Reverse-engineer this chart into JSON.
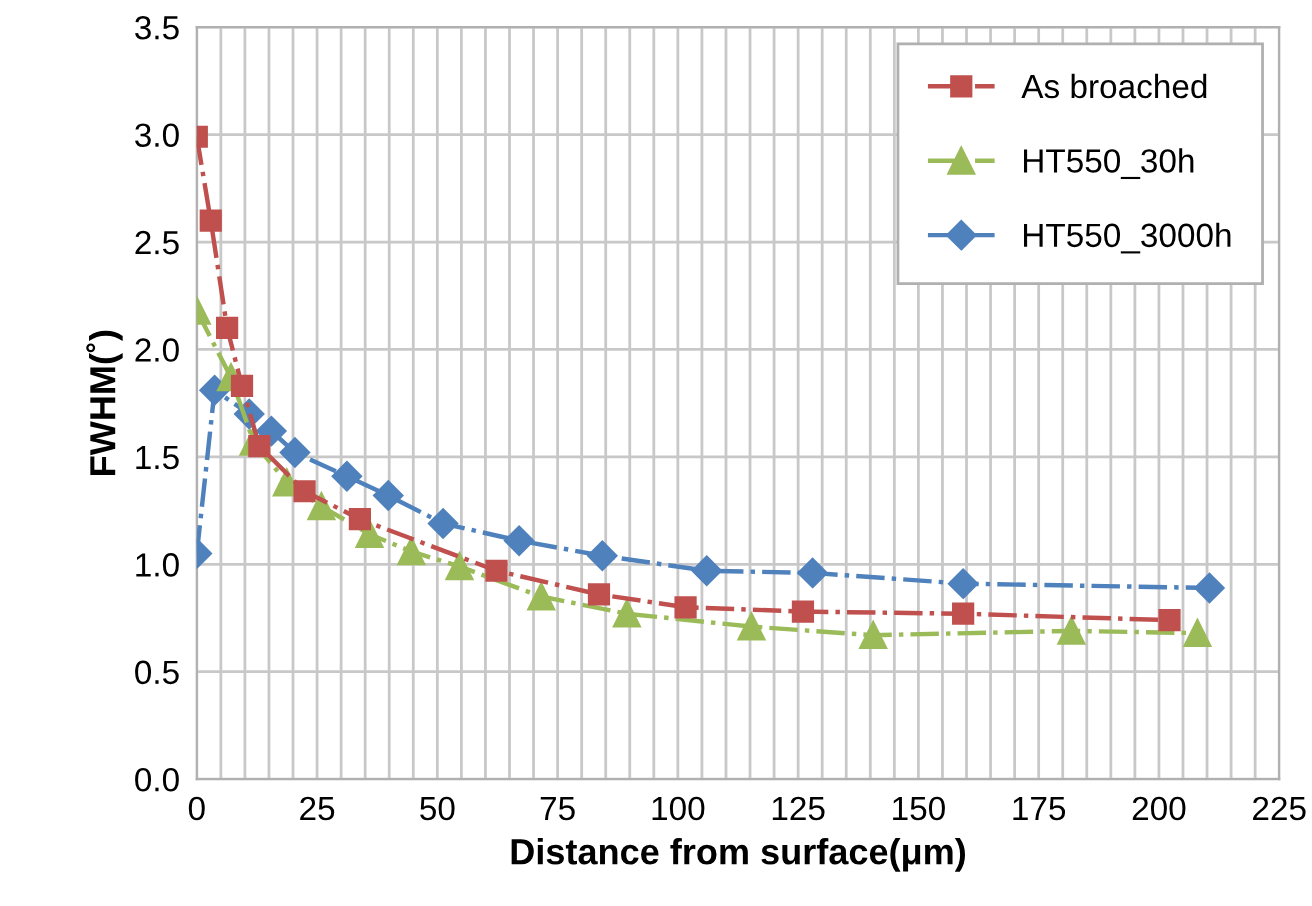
{
  "chart_data": {
    "type": "line",
    "xlabel": "Distance from surface(μm)",
    "ylabel": "FWHM(˚)",
    "xlim": [
      0,
      225
    ],
    "ylim": [
      0,
      3.5
    ],
    "xticks": [
      0,
      {
        "value": 5,
        "label": null
      },
      {
        "value": 10,
        "label": null
      },
      {
        "value": 15,
        "label": null
      },
      {
        "value": 20,
        "label": null
      },
      25,
      {
        "value": 30,
        "label": null
      },
      {
        "value": 35,
        "label": null
      },
      {
        "value": 40,
        "label": null
      },
      {
        "value": 45,
        "label": null
      },
      50,
      {
        "value": 55,
        "label": null
      },
      {
        "value": 60,
        "label": null
      },
      {
        "value": 65,
        "label": null
      },
      {
        "value": 70,
        "label": null
      },
      75,
      {
        "value": 80,
        "label": null
      },
      {
        "value": 85,
        "label": null
      },
      {
        "value": 90,
        "label": null
      },
      {
        "value": 95,
        "label": null
      },
      100,
      {
        "value": 105,
        "label": null
      },
      {
        "value": 110,
        "label": null
      },
      {
        "value": 115,
        "label": null
      },
      {
        "value": 120,
        "label": null
      },
      125,
      {
        "value": 130,
        "label": null
      },
      {
        "value": 135,
        "label": null
      },
      {
        "value": 140,
        "label": null
      },
      {
        "value": 145,
        "label": null
      },
      150,
      {
        "value": 155,
        "label": null
      },
      {
        "value": 160,
        "label": null
      },
      {
        "value": 165,
        "label": null
      },
      {
        "value": 170,
        "label": null
      },
      175,
      {
        "value": 180,
        "label": null
      },
      {
        "value": 185,
        "label": null
      },
      {
        "value": 190,
        "label": null
      },
      {
        "value": 195,
        "label": null
      },
      200,
      {
        "value": 205,
        "label": null
      },
      {
        "value": 210,
        "label": null
      },
      {
        "value": 215,
        "label": null
      },
      {
        "value": 220,
        "label": null
      },
      225
    ],
    "yticks": [
      {
        "value": 0,
        "label": "0.0"
      },
      0.5,
      {
        "value": 1,
        "label": "1.0"
      },
      1.5,
      {
        "value": 2,
        "label": "2.0"
      },
      2.5,
      {
        "value": 3,
        "label": "3.0"
      },
      3.5
    ],
    "grid": true,
    "legend": "top right",
    "line_style": "dashdot",
    "series": [
      {
        "name": "As broached",
        "color": "#c0504d",
        "marker": "square",
        "x": [
          0,
          2.9,
          6.3,
          9.4,
          13.0,
          22.4,
          33.9,
          62.3,
          83.6,
          101.6,
          126,
          159.3,
          202.2
        ],
        "values": [
          2.99,
          2.6,
          2.1,
          1.83,
          1.55,
          1.34,
          1.21,
          0.97,
          0.86,
          0.8,
          0.78,
          0.77,
          0.74
        ]
      },
      {
        "name": "HT550_30h",
        "color": "#9bbb59",
        "marker": "triangle",
        "x": [
          0,
          7.1,
          11.8,
          18.7,
          25.9,
          35.9,
          44.6,
          54.6,
          71.6,
          89.4,
          115.3,
          140.6,
          181.8,
          208
        ],
        "values": [
          2.18,
          1.87,
          1.57,
          1.38,
          1.27,
          1.14,
          1.06,
          0.99,
          0.85,
          0.77,
          0.71,
          0.67,
          0.69,
          0.68
        ]
      },
      {
        "name": "HT550_3000h",
        "color": "#4f81bd",
        "marker": "diamond",
        "x": [
          0,
          3.7,
          10.9,
          15.5,
          20.4,
          31.2,
          39.8,
          51.2,
          67,
          84.3,
          106,
          128,
          159.3,
          210.5
        ],
        "values": [
          1.05,
          1.81,
          1.7,
          1.62,
          1.52,
          1.41,
          1.32,
          1.19,
          1.11,
          1.04,
          0.97,
          0.96,
          0.91,
          0.89
        ]
      }
    ]
  }
}
